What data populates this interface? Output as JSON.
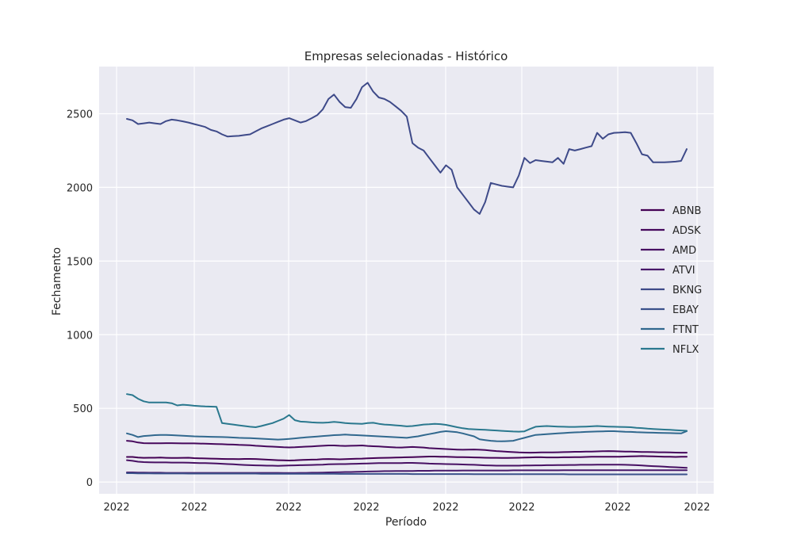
{
  "chart_data": {
    "type": "line",
    "title": "Empresas selecionadas - Histórico",
    "xlabel": "Período",
    "ylabel": "Fechamento",
    "x_tick_labels": [
      "2022",
      "2022",
      "2022",
      "2022",
      "2022",
      "2022",
      "2022",
      "2022"
    ],
    "y_ticks": [
      0,
      500,
      1000,
      1500,
      2000,
      2500
    ],
    "ylim": [
      -80,
      2820
    ],
    "grid": true,
    "legend_position": "center-right",
    "x": [
      0,
      1,
      2,
      3,
      4,
      5,
      6,
      7,
      8,
      9,
      10,
      11,
      12,
      13,
      14,
      15,
      16,
      17,
      18,
      19,
      20,
      21,
      22,
      23,
      24,
      25,
      26,
      27,
      28,
      29,
      30,
      31,
      32,
      33,
      34,
      35,
      36,
      37,
      38,
      39,
      40,
      41,
      42,
      43,
      44,
      45,
      46,
      47,
      48,
      49,
      50,
      51,
      52,
      53,
      54,
      55,
      56,
      57,
      58,
      59,
      60,
      61,
      62,
      63,
      64,
      65,
      66,
      67,
      68,
      69,
      70,
      71,
      72,
      73,
      74,
      75,
      76,
      77,
      78,
      79,
      80,
      81,
      82,
      83,
      84,
      85,
      86,
      87,
      88,
      89,
      90,
      91,
      92,
      93,
      94,
      95,
      96,
      97,
      98,
      99,
      100
    ],
    "series": [
      {
        "name": "ABNB",
        "color": "#440154",
        "values": [
          170,
          170,
          166,
          164,
          165,
          165,
          166,
          164,
          163,
          163,
          164,
          165,
          162,
          161,
          160,
          159,
          158,
          157,
          156,
          156,
          155,
          157,
          157,
          156,
          154,
          152,
          150,
          148,
          147,
          146,
          147,
          149,
          151,
          152,
          153,
          155,
          156,
          155,
          154,
          155,
          157,
          158,
          159,
          161,
          162,
          163,
          164,
          165,
          166,
          167,
          168,
          169,
          170,
          172,
          173,
          173,
          172,
          171,
          170,
          169,
          169,
          168,
          167,
          166,
          165,
          164,
          164,
          163,
          163,
          164,
          165,
          166,
          167,
          168,
          168,
          167,
          167,
          167,
          168,
          168,
          169,
          169,
          170,
          171,
          172,
          172,
          171,
          171,
          172,
          173,
          174,
          175,
          176,
          175,
          174,
          173,
          172,
          171,
          170,
          171,
          172
        ]
      },
      {
        "name": "ADSK",
        "color": "#46085c",
        "values": [
          280,
          276,
          268,
          264,
          263,
          263,
          263,
          264,
          264,
          263,
          262,
          262,
          262,
          261,
          260,
          259,
          258,
          257,
          255,
          254,
          252,
          251,
          250,
          246,
          244,
          242,
          240,
          238,
          236,
          235,
          236,
          238,
          240,
          242,
          244,
          246,
          248,
          248,
          246,
          245,
          246,
          247,
          248,
          245,
          243,
          241,
          239,
          237,
          235,
          234,
          236,
          238,
          236,
          234,
          230,
          228,
          226,
          224,
          222,
          220,
          219,
          220,
          221,
          219,
          217,
          213,
          210,
          208,
          205,
          203,
          201,
          200,
          199,
          200,
          201,
          201,
          201,
          202,
          203,
          204,
          205,
          205,
          206,
          207,
          208,
          209,
          210,
          209,
          208,
          207,
          206,
          205,
          204,
          204,
          203,
          202,
          202,
          201,
          200,
          199,
          199
        ]
      },
      {
        "name": "AMD",
        "color": "#471063",
        "values": [
          148,
          144,
          138,
          135,
          134,
          133,
          133,
          133,
          132,
          132,
          132,
          131,
          130,
          129,
          128,
          127,
          126,
          124,
          122,
          120,
          118,
          116,
          114,
          113,
          112,
          111,
          111,
          110,
          111,
          112,
          113,
          114,
          115,
          116,
          117,
          118,
          120,
          121,
          122,
          122,
          123,
          124,
          125,
          126,
          127,
          128,
          128,
          129,
          129,
          129,
          130,
          130,
          128,
          127,
          125,
          124,
          123,
          122,
          121,
          120,
          119,
          118,
          117,
          115,
          113,
          112,
          111,
          111,
          111,
          111,
          111,
          112,
          112,
          113,
          113,
          114,
          114,
          115,
          115,
          116,
          116,
          117,
          117,
          117,
          118,
          118,
          118,
          118,
          118,
          117,
          116,
          114,
          112,
          110,
          108,
          106,
          104,
          102,
          100,
          98,
          96
        ]
      },
      {
        "name": "ATVI",
        "color": "#48186a",
        "values": [
          65,
          65,
          64,
          64,
          63,
          63,
          63,
          62,
          62,
          62,
          62,
          62,
          62,
          62,
          62,
          62,
          62,
          62,
          62,
          62,
          62,
          62,
          62,
          62,
          62,
          62,
          62,
          62,
          61,
          61,
          61,
          62,
          62,
          63,
          63,
          64,
          65,
          66,
          67,
          68,
          68,
          69,
          70,
          71,
          72,
          73,
          74,
          74,
          75,
          75,
          75,
          75,
          76,
          76,
          76,
          77,
          77,
          77,
          77,
          77,
          78,
          78,
          78,
          78,
          78,
          78,
          78,
          78,
          78,
          79,
          79,
          79,
          79,
          79,
          79,
          79,
          79,
          79,
          80,
          80,
          80,
          80,
          80,
          80,
          80,
          80,
          80,
          80,
          80,
          80,
          80,
          80,
          80,
          80,
          80,
          80,
          80,
          80,
          80,
          80,
          80
        ]
      },
      {
        "name": "BKNG",
        "color": "#3e4a89",
        "values": [
          2465,
          2455,
          2430,
          2435,
          2440,
          2435,
          2430,
          2450,
          2460,
          2455,
          2448,
          2440,
          2430,
          2420,
          2410,
          2390,
          2380,
          2360,
          2345,
          2348,
          2350,
          2355,
          2360,
          2380,
          2400,
          2415,
          2430,
          2445,
          2460,
          2470,
          2455,
          2440,
          2450,
          2470,
          2490,
          2530,
          2600,
          2630,
          2580,
          2545,
          2540,
          2600,
          2680,
          2710,
          2650,
          2610,
          2600,
          2580,
          2550,
          2520,
          2480,
          2300,
          2270,
          2250,
          2200,
          2150,
          2100,
          2150,
          2120,
          2000,
          1950,
          1900,
          1850,
          1820,
          1900,
          2030,
          2020,
          2010,
          2005,
          2000,
          2080,
          2200,
          2165,
          2185,
          2180,
          2175,
          2170,
          2200,
          2160,
          2260,
          2250,
          2260,
          2270,
          2280,
          2370,
          2330,
          2360,
          2370,
          2372,
          2375,
          2370,
          2300,
          2225,
          2215,
          2170,
          2170,
          2170,
          2172,
          2175,
          2180,
          2260
        ]
      },
      {
        "name": "EBAY",
        "color": "#3b528b",
        "values": [
          60,
          60,
          59,
          59,
          59,
          58,
          58,
          58,
          58,
          58,
          58,
          57,
          57,
          57,
          57,
          57,
          57,
          57,
          57,
          57,
          57,
          57,
          57,
          57,
          56,
          56,
          56,
          56,
          56,
          56,
          56,
          56,
          56,
          56,
          56,
          56,
          56,
          56,
          55,
          55,
          55,
          55,
          55,
          55,
          55,
          55,
          55,
          55,
          55,
          55,
          55,
          54,
          54,
          54,
          54,
          54,
          54,
          54,
          54,
          54,
          54,
          54,
          53,
          53,
          53,
          53,
          53,
          53,
          53,
          53,
          53,
          53,
          53,
          53,
          53,
          53,
          53,
          53,
          53,
          52,
          52,
          52,
          52,
          52,
          52,
          52,
          52,
          52,
          52,
          52,
          52,
          52,
          52,
          52,
          52,
          52,
          52,
          52,
          52,
          52,
          52
        ]
      },
      {
        "name": "FTNT",
        "color": "#31688e",
        "values": [
          330,
          320,
          305,
          312,
          315,
          318,
          320,
          320,
          318,
          316,
          314,
          312,
          310,
          309,
          308,
          307,
          306,
          305,
          304,
          302,
          300,
          299,
          298,
          296,
          294,
          292,
          290,
          288,
          290,
          293,
          296,
          300,
          303,
          306,
          309,
          312,
          315,
          318,
          320,
          322,
          320,
          318,
          316,
          314,
          312,
          310,
          308,
          306,
          304,
          302,
          300,
          305,
          310,
          318,
          325,
          332,
          340,
          345,
          342,
          338,
          330,
          320,
          310,
          290,
          285,
          280,
          277,
          276,
          278,
          280,
          290,
          300,
          310,
          320,
          322,
          325,
          328,
          330,
          332,
          335,
          337,
          338,
          340,
          342,
          343,
          344,
          345,
          345,
          343,
          341,
          340,
          338,
          337,
          336,
          335,
          334,
          333,
          332,
          331,
          330,
          345
        ]
      },
      {
        "name": "NFLX",
        "color": "#2a788e",
        "values": [
          597,
          590,
          565,
          548,
          540,
          540,
          540,
          540,
          535,
          520,
          525,
          522,
          518,
          515,
          513,
          512,
          510,
          400,
          395,
          390,
          385,
          380,
          375,
          372,
          380,
          390,
          400,
          415,
          430,
          455,
          420,
          410,
          408,
          405,
          403,
          402,
          404,
          408,
          405,
          400,
          398,
          396,
          395,
          400,
          402,
          395,
          390,
          388,
          385,
          382,
          378,
          380,
          385,
          390,
          392,
          395,
          393,
          388,
          380,
          372,
          365,
          360,
          358,
          356,
          354,
          352,
          350,
          347,
          345,
          343,
          342,
          344,
          360,
          375,
          378,
          380,
          378,
          376,
          375,
          374,
          374,
          375,
          376,
          378,
          380,
          378,
          376,
          375,
          374,
          373,
          372,
          368,
          366,
          362,
          360,
          358,
          356,
          354,
          352,
          350,
          348
        ]
      }
    ]
  }
}
